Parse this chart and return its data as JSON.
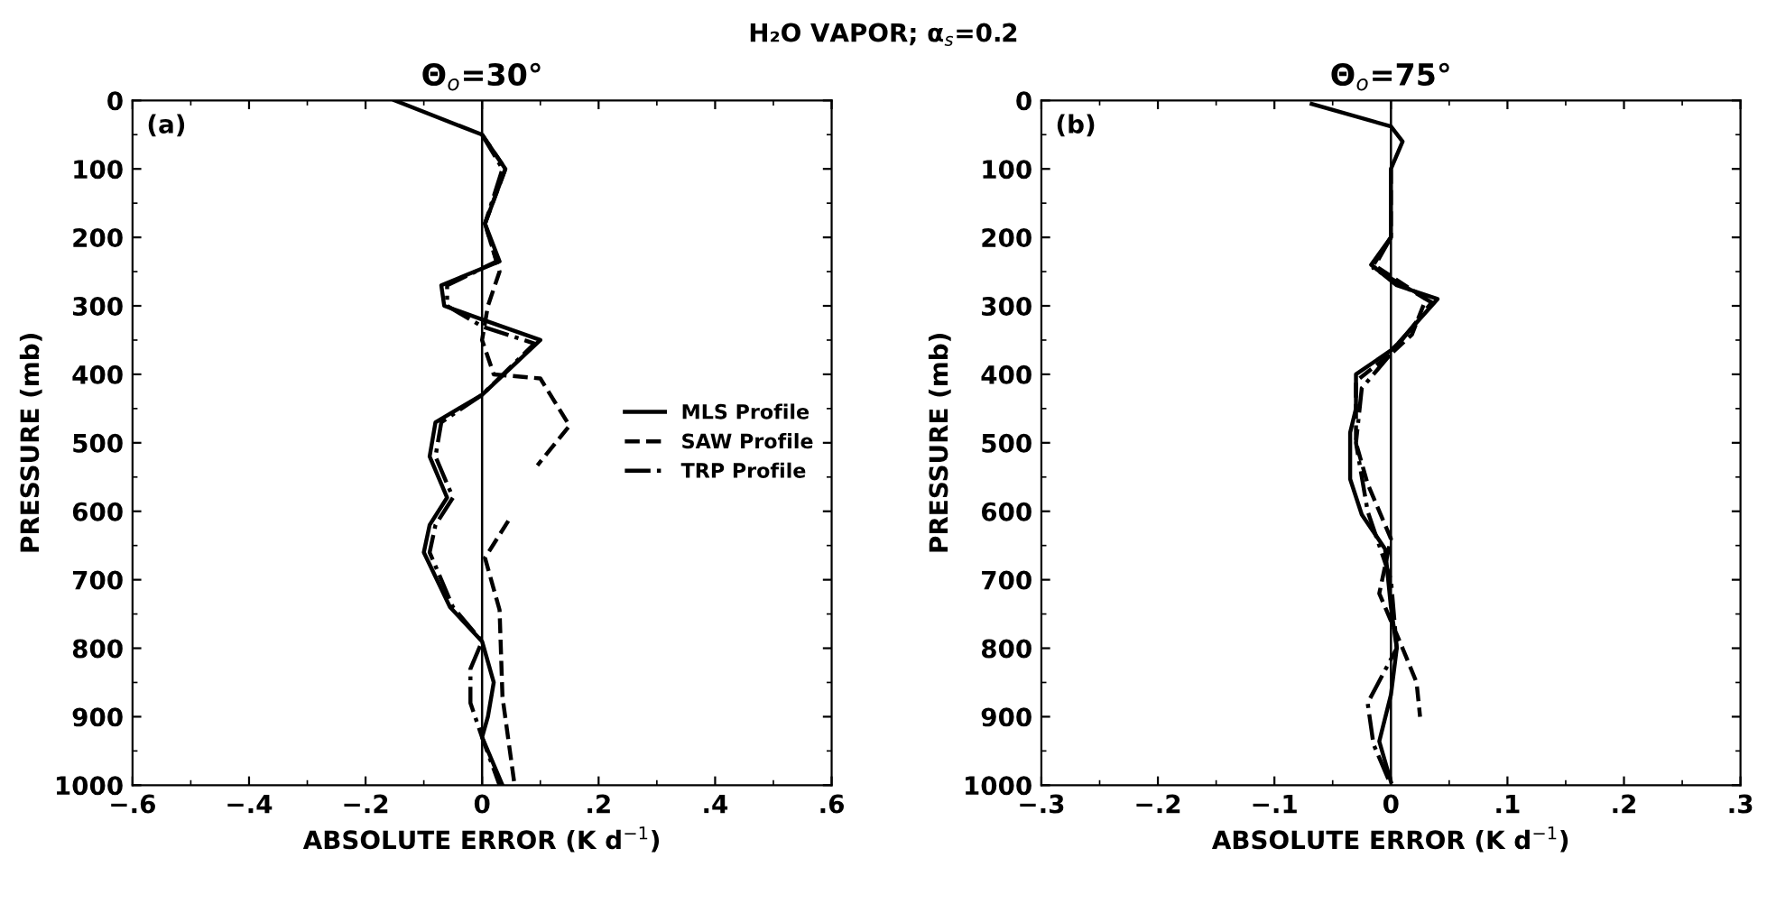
{
  "chart_data": [
    {
      "type": "line",
      "title": "Θ$_{o}$=30°",
      "xlabel": "ABSOLUTE ERROR (K d$^{−1}$)",
      "ylabel": "PRESSURE (mb)",
      "annotations": [
        "H₂O VAPOR; α$_{s}$=0.2",
        "(a)"
      ],
      "xlim": [
        -0.6,
        0.6
      ],
      "ylim": [
        1000,
        0
      ],
      "xticks": [
        {
          "value": -0.6,
          "label": "−.6"
        },
        {
          "value": -0.4,
          "label": "−.4"
        },
        {
          "value": -0.2,
          "label": "−.2"
        },
        0,
        {
          "value": 0.2,
          "label": ".2"
        },
        {
          "value": 0.4,
          "label": ".4"
        },
        {
          "value": 0.6,
          "label": ".6"
        }
      ],
      "yticks": [
        0,
        100,
        200,
        300,
        400,
        500,
        600,
        700,
        800,
        900,
        1000
      ],
      "ref_lines": [
        {
          "axis": "x",
          "value": 0,
          "color": "#000000"
        }
      ],
      "legend": "center right",
      "series": [
        {
          "name": "MLS Profile",
          "color": "#000000",
          "line_style": "solid",
          "x": [
            -0.15,
            0.0,
            0.04,
            0.005,
            0.03,
            -0.07,
            -0.065,
            0.0,
            0.1,
            0.0,
            -0.08,
            -0.09,
            -0.06,
            -0.09,
            -0.1,
            -0.055,
            0.0,
            0.02,
            0.01,
            0.0,
            0.035
          ],
          "values": [
            0,
            50,
            100,
            180,
            235,
            270,
            300,
            320,
            350,
            430,
            470,
            520,
            580,
            620,
            660,
            740,
            790,
            850,
            900,
            930,
            1000
          ]
        },
        {
          "name": "SAW Profile",
          "color": "#000000",
          "line_style": "dashed",
          "x": [
            0.0,
            0.04,
            0.005,
            0.03,
            0.01,
            0.0,
            0.02,
            0.1,
            0.15,
            0.095,
            null,
            0.045,
            0.005,
            0.03,
            0.035,
            0.055
          ],
          "values": [
            50,
            100,
            180,
            250,
            300,
            350,
            400,
            406,
            475,
            533,
            null,
            614,
            668,
            744,
            871,
            995
          ]
        },
        {
          "name": "TRP Profile",
          "color": "#000000",
          "line_style": "dashdot",
          "x": [
            0.0,
            0.035,
            0.005,
            0.025,
            -0.06,
            -0.06,
            0.0,
            0.09,
            0.0,
            -0.07,
            -0.08,
            -0.05,
            -0.08,
            -0.09,
            -0.05,
            0.0,
            -0.02,
            -0.02,
            0.0,
            0.03
          ],
          "values": [
            50,
            100,
            180,
            235,
            270,
            300,
            330,
            355,
            430,
            470,
            520,
            580,
            620,
            660,
            740,
            790,
            830,
            880,
            930,
            1000
          ]
        }
      ]
    },
    {
      "type": "line",
      "title": "Θ$_{o}$=75°",
      "xlabel": "ABSOLUTE ERROR (K d$^{−1}$)",
      "ylabel": "PRESSURE (mb)",
      "annotations": [
        "(b)"
      ],
      "xlim": [
        -0.3,
        0.3
      ],
      "ylim": [
        1000,
        0
      ],
      "xticks": [
        {
          "value": -0.3,
          "label": "−.3"
        },
        {
          "value": -0.2,
          "label": "−.2"
        },
        {
          "value": -0.1,
          "label": "−.1"
        },
        0,
        {
          "value": 0.1,
          "label": ".1"
        },
        {
          "value": 0.2,
          "label": ".2"
        },
        {
          "value": 0.3,
          "label": ".3"
        }
      ],
      "yticks": [
        0,
        100,
        200,
        300,
        400,
        500,
        600,
        700,
        800,
        900,
        1000
      ],
      "ref_lines": [
        {
          "axis": "x",
          "value": 0,
          "color": "#000000"
        }
      ],
      "series": [
        {
          "color": "#000000",
          "line_style": "solid",
          "x": [
            -0.068,
            0.0,
            0.01,
            0.0,
            0.0,
            -0.017,
            0.005,
            0.04,
            0.006,
            0.0,
            -0.03,
            -0.03,
            -0.035,
            -0.035,
            -0.025,
            -0.005,
            0.0,
            0.005,
            0.0,
            -0.01,
            0.0
          ],
          "values": [
            5,
            38,
            60,
            100,
            200,
            240,
            270,
            290,
            355,
            365,
            400,
            450,
            485,
            553,
            605,
            655,
            740,
            800,
            868,
            936,
            995
          ]
        },
        {
          "color": "#000000",
          "line_style": "dashed",
          "x": [
            0.0,
            0.0,
            -0.015,
            0.03,
            0.018,
            0.0,
            -0.03,
            -0.03,
            -0.02,
            0.0,
            -0.01,
            0.01,
            0.022,
            0.025
          ],
          "values": [
            100,
            200,
            240,
            290,
            342,
            370,
            410,
            500,
            560,
            640,
            720,
            800,
            850,
            900
          ]
        },
        {
          "color": "#000000",
          "line_style": "dashdot",
          "x": [
            0.0,
            -0.015,
            0.035,
            0.0,
            -0.025,
            -0.03,
            -0.02,
            0.0,
            0.005,
            -0.02,
            -0.015,
            0.0
          ],
          "values": [
            200,
            245,
            295,
            370,
            420,
            500,
            600,
            700,
            800,
            880,
            940,
            1000
          ]
        }
      ]
    }
  ]
}
